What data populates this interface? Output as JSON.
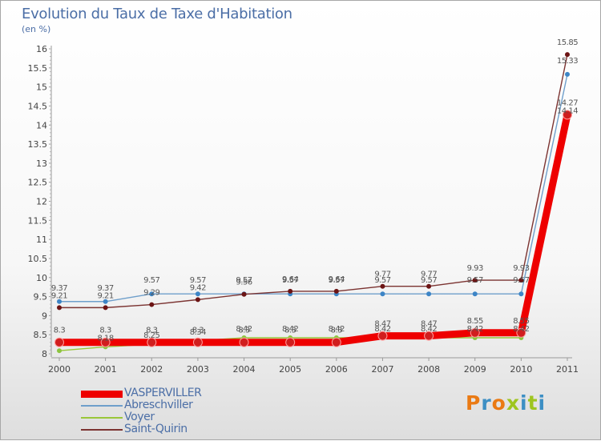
{
  "header": {
    "title": "Evolution du Taux de Taxe d'Habitation",
    "subtitle": "(en %)"
  },
  "brand": {
    "name": "Proxiti",
    "colors": [
      "#ea7a14",
      "#3d8fc4",
      "#ea7a14",
      "#9ec51f",
      "#3d8fc4",
      "#9ec51f",
      "#3d8fc4"
    ]
  },
  "chart_data": {
    "type": "line",
    "title": "Evolution du Taux de Taxe d'Habitation",
    "ylabel": "(en %)",
    "xlabel": "",
    "x": [
      "2000",
      "2001",
      "2002",
      "2003",
      "2004",
      "2005",
      "2006",
      "2007",
      "2008",
      "2009",
      "2010",
      "2011"
    ],
    "ylim": [
      8,
      16
    ],
    "yticks": [
      "8",
      "8.5",
      "9",
      "9.5",
      "10",
      "10.5",
      "11",
      "11.5",
      "12",
      "12.5",
      "13",
      "13.5",
      "14",
      "14.5",
      "15",
      "15.5",
      "16"
    ],
    "grid": false,
    "legend_position": "bottom-left",
    "series": [
      {
        "name": "VASPERVILLER",
        "color": "#ee0000",
        "marker": "#d11e1e",
        "values": [
          8.3,
          8.3,
          8.3,
          8.3,
          8.3,
          8.3,
          8.3,
          8.47,
          8.47,
          8.55,
          8.55,
          14.27
        ],
        "labels": [
          "8.3",
          "8.3",
          "8.3",
          "8.3",
          "8.3",
          "8.3",
          "8.3",
          "8.47",
          "8.47",
          "8.55",
          "8.55",
          "14.27"
        ]
      },
      {
        "name": "Abreschviller",
        "color": "#6f9fcb",
        "marker": "#3d85c6",
        "values": [
          9.37,
          9.37,
          9.57,
          9.57,
          9.57,
          9.57,
          9.57,
          9.57,
          9.57,
          9.57,
          9.57,
          15.33
        ],
        "labels": [
          "9.37",
          "9.37",
          "9.57",
          "9.57",
          "9.57",
          "9.57",
          "9.57",
          "9.57",
          "9.57",
          "9.57",
          "9.57",
          "15.33"
        ]
      },
      {
        "name": "Voyer",
        "color": "#9ac73a",
        "marker": "#8cc43f",
        "values": [
          8.08,
          8.18,
          8.25,
          8.34,
          8.42,
          8.42,
          8.42,
          8.42,
          8.42,
          8.42,
          8.42,
          14.14
        ],
        "labels": [
          "",
          "8.18",
          "8.25",
          "8.34",
          "8.42",
          "8.42",
          "8.42",
          "8.42",
          "8.42",
          "8.42",
          "8.42",
          "14.14"
        ]
      },
      {
        "name": "Saint-Quirin",
        "color": "#7b3331",
        "marker": "#6c1414",
        "values": [
          9.21,
          9.21,
          9.29,
          9.42,
          9.56,
          9.64,
          9.64,
          9.77,
          9.77,
          9.93,
          9.93,
          15.85
        ],
        "labels": [
          "9.21",
          "9.21",
          "9.29",
          "9.42",
          "9.56",
          "9.64",
          "9.64",
          "9.77",
          "9.77",
          "9.93",
          "9.93",
          "15.85"
        ]
      }
    ]
  }
}
